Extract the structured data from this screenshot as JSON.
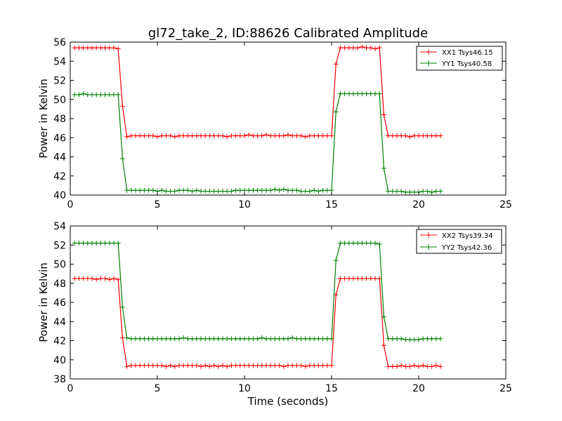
{
  "title": "gl72_take_2, ID:88626 Calibrated Amplitude",
  "xlabel": "Time (seconds)",
  "chart_data": [
    {
      "type": "line",
      "ylabel": "Power in Kelvin",
      "xlim": [
        0,
        25
      ],
      "ylim": [
        40,
        56
      ],
      "xticks": [
        0,
        5,
        10,
        15,
        20,
        25
      ],
      "yticks": [
        40,
        42,
        44,
        46,
        48,
        50,
        52,
        54,
        56
      ],
      "legend_position": "top-right",
      "series": [
        {
          "name": "XX1 Tsys46.15",
          "color": "#ff0000",
          "x": [
            0.25,
            0.5,
            0.75,
            1.0,
            1.25,
            1.5,
            1.75,
            2.0,
            2.25,
            2.5,
            2.75,
            3.0,
            3.25,
            3.5,
            3.75,
            4.0,
            4.25,
            4.5,
            4.75,
            5.0,
            5.25,
            5.5,
            5.75,
            6.0,
            6.25,
            6.5,
            6.75,
            7.0,
            7.25,
            7.5,
            7.75,
            8.0,
            8.25,
            8.5,
            8.75,
            9.0,
            9.25,
            9.5,
            9.75,
            10.0,
            10.25,
            10.5,
            10.75,
            11.0,
            11.25,
            11.5,
            11.75,
            12.0,
            12.25,
            12.5,
            12.75,
            13.0,
            13.25,
            13.5,
            13.75,
            14.0,
            14.25,
            14.5,
            14.75,
            15.0,
            15.25,
            15.5,
            15.75,
            16.0,
            16.25,
            16.5,
            16.75,
            17.0,
            17.25,
            17.5,
            17.75,
            18.0,
            18.25,
            18.5,
            18.75,
            19.0,
            19.25,
            19.5,
            19.75,
            20.0,
            20.25,
            20.5,
            20.75,
            21.0,
            21.25
          ],
          "values": [
            55.4,
            55.4,
            55.4,
            55.4,
            55.4,
            55.4,
            55.4,
            55.4,
            55.4,
            55.4,
            55.3,
            49.3,
            46.1,
            46.2,
            46.2,
            46.2,
            46.2,
            46.2,
            46.2,
            46.1,
            46.2,
            46.2,
            46.2,
            46.1,
            46.2,
            46.2,
            46.2,
            46.2,
            46.2,
            46.2,
            46.2,
            46.2,
            46.2,
            46.2,
            46.2,
            46.1,
            46.2,
            46.2,
            46.2,
            46.2,
            46.3,
            46.2,
            46.2,
            46.2,
            46.3,
            46.2,
            46.2,
            46.2,
            46.2,
            46.3,
            46.2,
            46.2,
            46.2,
            46.1,
            46.2,
            46.2,
            46.2,
            46.2,
            46.2,
            46.2,
            53.7,
            55.4,
            55.4,
            55.4,
            55.4,
            55.4,
            55.5,
            55.4,
            55.4,
            55.3,
            55.4,
            48.4,
            46.2,
            46.2,
            46.2,
            46.2,
            46.2,
            46.1,
            46.2,
            46.2,
            46.2,
            46.2,
            46.2,
            46.2,
            46.2
          ]
        },
        {
          "name": "YY1 Tsys40.58",
          "color": "#008000",
          "x": [
            0.25,
            0.5,
            0.75,
            1.0,
            1.25,
            1.5,
            1.75,
            2.0,
            2.25,
            2.5,
            2.75,
            3.0,
            3.25,
            3.5,
            3.75,
            4.0,
            4.25,
            4.5,
            4.75,
            5.0,
            5.25,
            5.5,
            5.75,
            6.0,
            6.25,
            6.5,
            6.75,
            7.0,
            7.25,
            7.5,
            7.75,
            8.0,
            8.25,
            8.5,
            8.75,
            9.0,
            9.25,
            9.5,
            9.75,
            10.0,
            10.25,
            10.5,
            10.75,
            11.0,
            11.25,
            11.5,
            11.75,
            12.0,
            12.25,
            12.5,
            12.75,
            13.0,
            13.25,
            13.5,
            13.75,
            14.0,
            14.25,
            14.5,
            14.75,
            15.0,
            15.25,
            15.5,
            15.75,
            16.0,
            16.25,
            16.5,
            16.75,
            17.0,
            17.25,
            17.5,
            17.75,
            18.0,
            18.25,
            18.5,
            18.75,
            19.0,
            19.25,
            19.5,
            19.75,
            20.0,
            20.25,
            20.5,
            20.75,
            21.0,
            21.25
          ],
          "values": [
            50.5,
            50.5,
            50.6,
            50.5,
            50.5,
            50.5,
            50.5,
            50.5,
            50.5,
            50.5,
            50.5,
            43.8,
            40.5,
            40.5,
            40.5,
            40.5,
            40.5,
            40.5,
            40.5,
            40.4,
            40.5,
            40.4,
            40.4,
            40.4,
            40.5,
            40.5,
            40.5,
            40.4,
            40.5,
            40.4,
            40.4,
            40.4,
            40.4,
            40.4,
            40.4,
            40.4,
            40.4,
            40.5,
            40.5,
            40.5,
            40.5,
            40.5,
            40.5,
            40.5,
            40.5,
            40.5,
            40.6,
            40.5,
            40.6,
            40.5,
            40.5,
            40.5,
            40.4,
            40.4,
            40.4,
            40.5,
            40.4,
            40.5,
            40.5,
            40.5,
            48.7,
            50.6,
            50.6,
            50.6,
            50.6,
            50.6,
            50.6,
            50.6,
            50.6,
            50.6,
            50.6,
            42.8,
            40.4,
            40.4,
            40.4,
            40.4,
            40.3,
            40.3,
            40.3,
            40.3,
            40.4,
            40.4,
            40.3,
            40.4,
            40.4
          ]
        }
      ]
    },
    {
      "type": "line",
      "ylabel": "Power in Kelvin",
      "xlabel": "Time (seconds)",
      "xlim": [
        0,
        25
      ],
      "ylim": [
        38,
        54
      ],
      "xticks": [
        0,
        5,
        10,
        15,
        20,
        25
      ],
      "yticks": [
        38,
        40,
        42,
        44,
        46,
        48,
        50,
        52,
        54
      ],
      "legend_position": "top-right",
      "series": [
        {
          "name": "XX2 Tsys39.34",
          "color": "#ff0000",
          "x": [
            0.25,
            0.5,
            0.75,
            1.0,
            1.25,
            1.5,
            1.75,
            2.0,
            2.25,
            2.5,
            2.75,
            3.0,
            3.25,
            3.5,
            3.75,
            4.0,
            4.25,
            4.5,
            4.75,
            5.0,
            5.25,
            5.5,
            5.75,
            6.0,
            6.25,
            6.5,
            6.75,
            7.0,
            7.25,
            7.5,
            7.75,
            8.0,
            8.25,
            8.5,
            8.75,
            9.0,
            9.25,
            9.5,
            9.75,
            10.0,
            10.25,
            10.5,
            10.75,
            11.0,
            11.25,
            11.5,
            11.75,
            12.0,
            12.25,
            12.5,
            12.75,
            13.0,
            13.25,
            13.5,
            13.75,
            14.0,
            14.25,
            14.5,
            14.75,
            15.0,
            15.25,
            15.5,
            15.75,
            16.0,
            16.25,
            16.5,
            16.75,
            17.0,
            17.25,
            17.5,
            17.75,
            18.0,
            18.25,
            18.5,
            18.75,
            19.0,
            19.25,
            19.5,
            19.75,
            20.0,
            20.25,
            20.5,
            20.75,
            21.0,
            21.25
          ],
          "values": [
            48.5,
            48.5,
            48.5,
            48.5,
            48.5,
            48.4,
            48.5,
            48.5,
            48.4,
            48.5,
            48.4,
            42.3,
            39.3,
            39.4,
            39.4,
            39.4,
            39.4,
            39.4,
            39.4,
            39.4,
            39.4,
            39.3,
            39.4,
            39.3,
            39.4,
            39.4,
            39.4,
            39.4,
            39.4,
            39.3,
            39.4,
            39.3,
            39.4,
            39.3,
            39.4,
            39.3,
            39.4,
            39.4,
            39.4,
            39.4,
            39.4,
            39.4,
            39.4,
            39.4,
            39.4,
            39.4,
            39.4,
            39.4,
            39.3,
            39.4,
            39.4,
            39.4,
            39.4,
            39.3,
            39.4,
            39.4,
            39.4,
            39.4,
            39.4,
            39.4,
            46.8,
            48.5,
            48.5,
            48.5,
            48.5,
            48.5,
            48.5,
            48.5,
            48.5,
            48.5,
            48.5,
            41.5,
            39.3,
            39.3,
            39.3,
            39.4,
            39.3,
            39.3,
            39.4,
            39.3,
            39.4,
            39.3,
            39.3,
            39.4,
            39.3
          ]
        },
        {
          "name": "YY2 Tsys42.36",
          "color": "#008000",
          "x": [
            0.25,
            0.5,
            0.75,
            1.0,
            1.25,
            1.5,
            1.75,
            2.0,
            2.25,
            2.5,
            2.75,
            3.0,
            3.25,
            3.5,
            3.75,
            4.0,
            4.25,
            4.5,
            4.75,
            5.0,
            5.25,
            5.5,
            5.75,
            6.0,
            6.25,
            6.5,
            6.75,
            7.0,
            7.25,
            7.5,
            7.75,
            8.0,
            8.25,
            8.5,
            8.75,
            9.0,
            9.25,
            9.5,
            9.75,
            10.0,
            10.25,
            10.5,
            10.75,
            11.0,
            11.25,
            11.5,
            11.75,
            12.0,
            12.25,
            12.5,
            12.75,
            13.0,
            13.25,
            13.5,
            13.75,
            14.0,
            14.25,
            14.5,
            14.75,
            15.0,
            15.25,
            15.5,
            15.75,
            16.0,
            16.25,
            16.5,
            16.75,
            17.0,
            17.25,
            17.5,
            17.75,
            18.0,
            18.25,
            18.5,
            18.75,
            19.0,
            19.25,
            19.5,
            19.75,
            20.0,
            20.25,
            20.5,
            20.75,
            21.0,
            21.25
          ],
          "values": [
            52.2,
            52.2,
            52.2,
            52.2,
            52.2,
            52.2,
            52.2,
            52.2,
            52.2,
            52.2,
            52.2,
            45.5,
            42.3,
            42.2,
            42.2,
            42.2,
            42.2,
            42.2,
            42.2,
            42.2,
            42.2,
            42.2,
            42.2,
            42.2,
            42.2,
            42.3,
            42.2,
            42.2,
            42.2,
            42.2,
            42.2,
            42.2,
            42.2,
            42.2,
            42.2,
            42.2,
            42.2,
            42.2,
            42.2,
            42.2,
            42.2,
            42.2,
            42.2,
            42.3,
            42.2,
            42.2,
            42.2,
            42.2,
            42.2,
            42.2,
            42.3,
            42.2,
            42.2,
            42.2,
            42.2,
            42.2,
            42.2,
            42.2,
            42.2,
            42.2,
            50.4,
            52.2,
            52.2,
            52.2,
            52.2,
            52.2,
            52.2,
            52.2,
            52.2,
            52.2,
            52.1,
            44.5,
            42.2,
            42.2,
            42.2,
            42.2,
            42.1,
            42.1,
            42.1,
            42.1,
            42.2,
            42.2,
            42.2,
            42.2,
            42.2
          ]
        }
      ]
    }
  ]
}
